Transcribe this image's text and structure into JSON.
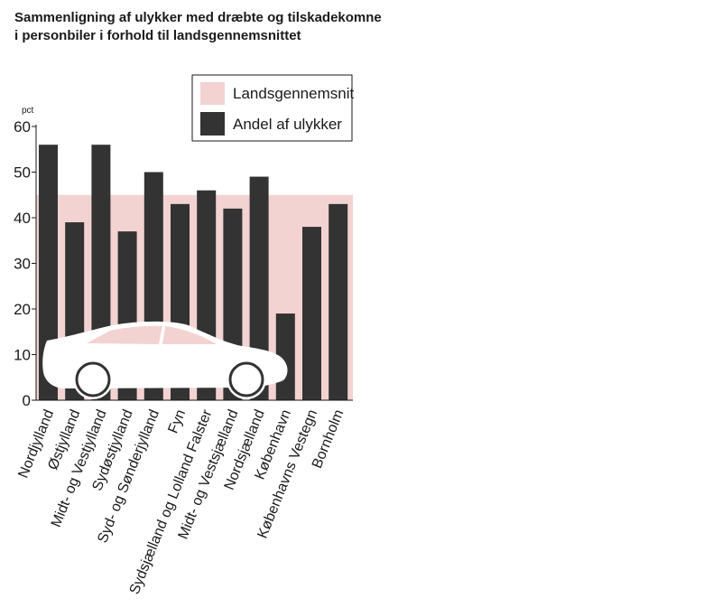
{
  "chart_data": {
    "type": "bar",
    "title_lines": [
      "Sammenligning af ulykker med dræbte og tilskadekomne",
      "i personbiler i forhold til landsgennemsnittet"
    ],
    "ylabel": "pct",
    "ylim": [
      0,
      60
    ],
    "yticks": [
      0,
      10,
      20,
      30,
      40,
      50,
      60
    ],
    "categories": [
      "Nordjylland",
      "Østjylland",
      "Midt- og Vestjylland",
      "Sydøstjylland",
      "Syd- og Sønderjylland",
      "Fyn",
      "Sydsjælland og Lolland Falster",
      "Midt- og Vestsjælland",
      "Nordsjælland",
      "København",
      "Københavns Vestegn",
      "Bornholm"
    ],
    "series": [
      {
        "name": "Andel af ulykker",
        "values": [
          56,
          39,
          56,
          37,
          50,
          43,
          46,
          42,
          49,
          19,
          38,
          43
        ]
      }
    ],
    "reference": {
      "name": "Landsgennemsnit",
      "value": 45
    },
    "legend_position": "top-right",
    "colors": {
      "bar": "#333333",
      "reference": "#f2d3d1",
      "car": "#ffffff"
    }
  }
}
